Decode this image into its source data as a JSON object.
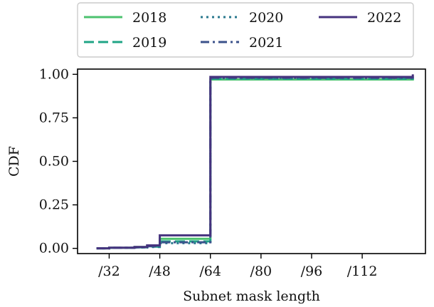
{
  "chart_data": {
    "type": "line",
    "step": true,
    "title": "",
    "xlabel": "Subnet mask length",
    "ylabel": "CDF",
    "xlim": [
      22,
      132
    ],
    "ylim": [
      -0.03,
      1.03
    ],
    "xticks": [
      32,
      48,
      64,
      80,
      96,
      112
    ],
    "xtick_labels": [
      "/32",
      "/48",
      "/64",
      "/80",
      "/96",
      "/112"
    ],
    "yticks": [
      0.0,
      0.25,
      0.5,
      0.75,
      1.0
    ],
    "ytick_labels": [
      "0.00",
      "0.25",
      "0.50",
      "0.75",
      "1.00"
    ],
    "grid": false,
    "legend_position": "top (above plot)",
    "series": [
      {
        "name": "2018",
        "color": "#4cc26f",
        "dash": "solid",
        "x": [
          28,
          32,
          40,
          44,
          48,
          64,
          128
        ],
        "y": [
          0.0,
          0.003,
          0.008,
          0.015,
          0.055,
          0.97,
          0.975
        ]
      },
      {
        "name": "2019",
        "color": "#20a486",
        "dash": "dashed",
        "x": [
          28,
          32,
          40,
          44,
          48,
          64,
          128
        ],
        "y": [
          0.0,
          0.003,
          0.006,
          0.01,
          0.04,
          0.975,
          0.98
        ]
      },
      {
        "name": "2020",
        "color": "#2a788e",
        "dash": "dotted",
        "x": [
          28,
          32,
          40,
          44,
          48,
          64,
          128
        ],
        "y": [
          0.0,
          0.003,
          0.005,
          0.008,
          0.03,
          0.978,
          0.983
        ]
      },
      {
        "name": "2021",
        "color": "#3b528b",
        "dash": "dashdot",
        "x": [
          28,
          32,
          40,
          44,
          48,
          64,
          128
        ],
        "y": [
          0.0,
          0.003,
          0.006,
          0.012,
          0.035,
          0.98,
          0.988
        ]
      },
      {
        "name": "2022",
        "color": "#46337e",
        "dash": "solid",
        "x": [
          28,
          32,
          40,
          44,
          48,
          64,
          128
        ],
        "y": [
          0.0,
          0.004,
          0.008,
          0.017,
          0.075,
          0.985,
          1.0
        ]
      }
    ]
  }
}
